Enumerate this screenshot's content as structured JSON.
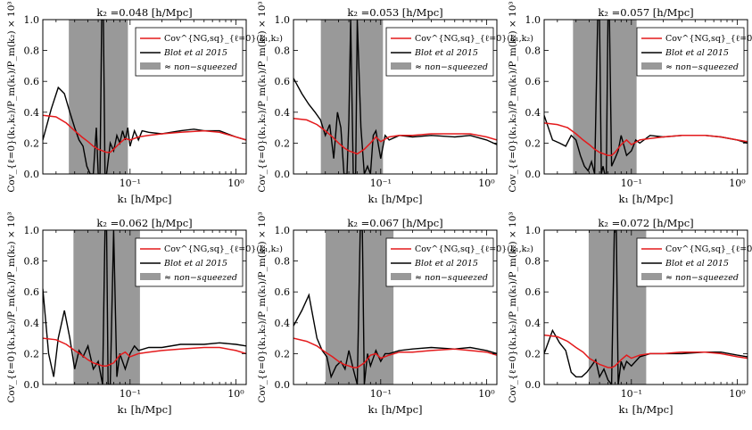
{
  "figure": {
    "ylabel": "Cov_{ℓ=0}(k₁,k₂)/P_m(k₁)/P_m(k₂) × 10³",
    "xlabel": "k₁  [h/Mpc]",
    "xtick_major": "10⁻¹",
    "xtick_major2": "10⁰",
    "yticks": [
      "0.0",
      "0.2",
      "0.4",
      "0.6",
      "0.8",
      "1.0"
    ],
    "legend": {
      "model": "Cov^{NG,sq}_{ℓ=0}(k₁,k₂)",
      "data": "Blot et al 2015",
      "band": "≈ non−squeezed"
    },
    "colors": {
      "model": "#e41a1c",
      "data": "#000000",
      "band": "#999999"
    }
  },
  "chart_data": [
    {
      "type": "line",
      "title": "k₂ =0.048 [h/Mpc]",
      "k2": 0.048,
      "xscale": "log",
      "xlim": [
        0.015,
        1.25
      ],
      "ylim": [
        0,
        1.0
      ],
      "band": [
        0.0264,
        0.0955
      ],
      "series": [
        {
          "name": "Cov^{NG,sq}_{ℓ=0}(k₁,k₂)",
          "x": [
            0.015,
            0.02,
            0.025,
            0.03,
            0.035,
            0.04,
            0.045,
            0.05,
            0.055,
            0.06,
            0.065,
            0.07,
            0.08,
            0.09,
            0.1,
            0.12,
            0.15,
            0.2,
            0.3,
            0.5,
            0.7,
            1.0,
            1.25
          ],
          "y": [
            0.38,
            0.37,
            0.33,
            0.28,
            0.24,
            0.21,
            0.18,
            0.16,
            0.15,
            0.14,
            0.14,
            0.16,
            0.2,
            0.23,
            0.22,
            0.24,
            0.25,
            0.26,
            0.27,
            0.28,
            0.27,
            0.24,
            0.22
          ]
        },
        {
          "name": "Blot et al 2015",
          "x": [
            0.015,
            0.018,
            0.021,
            0.024,
            0.027,
            0.03,
            0.033,
            0.036,
            0.039,
            0.042,
            0.045,
            0.048,
            0.05,
            0.052,
            0.054,
            0.056,
            0.058,
            0.06,
            0.065,
            0.07,
            0.075,
            0.08,
            0.085,
            0.09,
            0.095,
            0.1,
            0.11,
            0.12,
            0.13,
            0.15,
            0.2,
            0.3,
            0.4,
            0.5,
            0.7,
            1.0,
            1.25
          ],
          "y": [
            0.22,
            0.42,
            0.56,
            0.52,
            0.4,
            0.3,
            0.22,
            0.18,
            0.05,
            0.0,
            0.0,
            0.3,
            0.0,
            0.0,
            1.0,
            1.0,
            0.0,
            0.0,
            0.2,
            0.15,
            0.25,
            0.2,
            0.28,
            0.22,
            0.3,
            0.18,
            0.28,
            0.22,
            0.28,
            0.27,
            0.26,
            0.28,
            0.29,
            0.28,
            0.28,
            0.24,
            0.22
          ]
        }
      ]
    },
    {
      "type": "line",
      "title": "k₂ =0.053 [h/Mpc]",
      "k2": 0.053,
      "xscale": "log",
      "xlim": [
        0.015,
        1.25
      ],
      "ylim": [
        0,
        1.0
      ],
      "band": [
        0.0272,
        0.105
      ],
      "series": [
        {
          "name": "Cov^{NG,sq}_{ℓ=0}(k₁,k₂)",
          "x": [
            0.015,
            0.02,
            0.025,
            0.03,
            0.035,
            0.04,
            0.045,
            0.05,
            0.055,
            0.06,
            0.07,
            0.08,
            0.09,
            0.1,
            0.12,
            0.15,
            0.2,
            0.3,
            0.5,
            0.7,
            1.0,
            1.25
          ],
          "y": [
            0.36,
            0.35,
            0.32,
            0.28,
            0.24,
            0.2,
            0.17,
            0.15,
            0.14,
            0.13,
            0.16,
            0.2,
            0.24,
            0.21,
            0.24,
            0.25,
            0.25,
            0.26,
            0.26,
            0.26,
            0.24,
            0.22
          ]
        },
        {
          "name": "Blot et al 2015",
          "x": [
            0.015,
            0.018,
            0.021,
            0.024,
            0.027,
            0.03,
            0.033,
            0.036,
            0.039,
            0.042,
            0.045,
            0.048,
            0.05,
            0.052,
            0.055,
            0.058,
            0.06,
            0.065,
            0.07,
            0.075,
            0.08,
            0.085,
            0.09,
            0.1,
            0.11,
            0.12,
            0.15,
            0.2,
            0.3,
            0.5,
            0.7,
            1.0,
            1.25
          ],
          "y": [
            0.62,
            0.52,
            0.45,
            0.4,
            0.35,
            0.25,
            0.32,
            0.1,
            0.4,
            0.3,
            0.0,
            0.0,
            0.35,
            1.0,
            0.0,
            0.0,
            1.0,
            0.3,
            0.0,
            0.05,
            0.0,
            0.25,
            0.28,
            0.1,
            0.25,
            0.22,
            0.25,
            0.24,
            0.25,
            0.24,
            0.25,
            0.22,
            0.19
          ]
        }
      ]
    },
    {
      "type": "line",
      "title": "k₂ =0.057 [h/Mpc]",
      "k2": 0.057,
      "xscale": "log",
      "xlim": [
        0.015,
        1.25
      ],
      "ylim": [
        0,
        1.0
      ],
      "band": [
        0.0281,
        0.112
      ],
      "series": [
        {
          "name": "Cov^{NG,sq}_{ℓ=0}(k₁,k₂)",
          "x": [
            0.015,
            0.02,
            0.025,
            0.03,
            0.035,
            0.04,
            0.045,
            0.05,
            0.055,
            0.06,
            0.065,
            0.07,
            0.08,
            0.09,
            0.1,
            0.12,
            0.15,
            0.2,
            0.3,
            0.5,
            0.7,
            1.0,
            1.25
          ],
          "y": [
            0.33,
            0.32,
            0.3,
            0.26,
            0.22,
            0.19,
            0.16,
            0.14,
            0.13,
            0.12,
            0.12,
            0.14,
            0.19,
            0.22,
            0.19,
            0.22,
            0.23,
            0.24,
            0.25,
            0.25,
            0.24,
            0.22,
            0.21
          ]
        },
        {
          "name": "Blot et al 2015",
          "x": [
            0.015,
            0.018,
            0.021,
            0.024,
            0.027,
            0.03,
            0.033,
            0.036,
            0.039,
            0.042,
            0.045,
            0.048,
            0.05,
            0.052,
            0.054,
            0.056,
            0.058,
            0.06,
            0.062,
            0.065,
            0.07,
            0.075,
            0.08,
            0.09,
            0.1,
            0.11,
            0.12,
            0.15,
            0.2,
            0.3,
            0.5,
            0.7,
            1.0,
            1.25
          ],
          "y": [
            0.38,
            0.22,
            0.2,
            0.18,
            0.25,
            0.22,
            0.12,
            0.05,
            0.02,
            0.08,
            0.0,
            1.0,
            1.0,
            0.0,
            0.05,
            0.0,
            0.0,
            1.0,
            1.0,
            0.05,
            0.1,
            0.15,
            0.25,
            0.12,
            0.15,
            0.22,
            0.2,
            0.25,
            0.24,
            0.25,
            0.25,
            0.24,
            0.22,
            0.2
          ]
        }
      ]
    },
    {
      "type": "line",
      "title": "k₂ =0.062 [h/Mpc]",
      "k2": 0.062,
      "xscale": "log",
      "xlim": [
        0.015,
        1.25
      ],
      "ylim": [
        0,
        1.0
      ],
      "band": [
        0.0292,
        0.124
      ],
      "series": [
        {
          "name": "Cov^{NG,sq}_{ℓ=0}(k₁,k₂)",
          "x": [
            0.015,
            0.02,
            0.025,
            0.03,
            0.035,
            0.04,
            0.045,
            0.05,
            0.055,
            0.06,
            0.07,
            0.08,
            0.09,
            0.1,
            0.12,
            0.15,
            0.2,
            0.3,
            0.5,
            0.7,
            1.0,
            1.25
          ],
          "y": [
            0.3,
            0.29,
            0.26,
            0.22,
            0.19,
            0.16,
            0.14,
            0.13,
            0.12,
            0.12,
            0.14,
            0.19,
            0.21,
            0.18,
            0.2,
            0.21,
            0.22,
            0.23,
            0.24,
            0.24,
            0.22,
            0.2
          ]
        },
        {
          "name": "Blot et al 2015",
          "x": [
            0.015,
            0.017,
            0.019,
            0.021,
            0.024,
            0.027,
            0.03,
            0.033,
            0.036,
            0.04,
            0.045,
            0.05,
            0.055,
            0.058,
            0.06,
            0.062,
            0.065,
            0.07,
            0.075,
            0.08,
            0.09,
            0.1,
            0.11,
            0.12,
            0.15,
            0.2,
            0.3,
            0.5,
            0.7,
            1.0,
            1.25
          ],
          "y": [
            0.62,
            0.2,
            0.05,
            0.3,
            0.48,
            0.3,
            0.1,
            0.22,
            0.18,
            0.25,
            0.1,
            0.15,
            0.0,
            1.0,
            1.0,
            0.0,
            0.0,
            1.0,
            0.05,
            0.2,
            0.1,
            0.2,
            0.25,
            0.22,
            0.24,
            0.24,
            0.26,
            0.26,
            0.27,
            0.26,
            0.25
          ]
        }
      ]
    },
    {
      "type": "line",
      "title": "k₂ =0.067 [h/Mpc]",
      "k2": 0.067,
      "xscale": "log",
      "xlim": [
        0.015,
        1.25
      ],
      "ylim": [
        0,
        1.0
      ],
      "band": [
        0.0301,
        0.132
      ],
      "series": [
        {
          "name": "Cov^{NG,sq}_{ℓ=0}(k₁,k₂)",
          "x": [
            0.015,
            0.02,
            0.025,
            0.03,
            0.035,
            0.04,
            0.045,
            0.05,
            0.055,
            0.06,
            0.07,
            0.08,
            0.09,
            0.1,
            0.12,
            0.15,
            0.2,
            0.3,
            0.5,
            0.7,
            1.0,
            1.25
          ],
          "y": [
            0.3,
            0.28,
            0.25,
            0.21,
            0.18,
            0.15,
            0.13,
            0.12,
            0.11,
            0.11,
            0.14,
            0.19,
            0.2,
            0.17,
            0.19,
            0.21,
            0.21,
            0.22,
            0.23,
            0.22,
            0.21,
            0.19
          ]
        },
        {
          "name": "Blot et al 2015",
          "x": [
            0.015,
            0.018,
            0.021,
            0.025,
            0.028,
            0.031,
            0.034,
            0.038,
            0.042,
            0.046,
            0.05,
            0.055,
            0.06,
            0.064,
            0.067,
            0.07,
            0.075,
            0.08,
            0.09,
            0.1,
            0.11,
            0.12,
            0.15,
            0.2,
            0.3,
            0.5,
            0.7,
            1.0,
            1.25
          ],
          "y": [
            0.38,
            0.48,
            0.58,
            0.3,
            0.22,
            0.18,
            0.05,
            0.12,
            0.15,
            0.1,
            0.22,
            0.1,
            0.0,
            1.0,
            1.0,
            0.0,
            0.2,
            0.12,
            0.22,
            0.15,
            0.2,
            0.2,
            0.22,
            0.23,
            0.24,
            0.23,
            0.24,
            0.22,
            0.2
          ]
        }
      ]
    },
    {
      "type": "line",
      "title": "k₂ =0.072 [h/Mpc]",
      "k2": 0.072,
      "xscale": "log",
      "xlim": [
        0.015,
        1.25
      ],
      "ylim": [
        0,
        1.0
      ],
      "band": [
        0.0395,
        0.138
      ],
      "series": [
        {
          "name": "Cov^{NG,sq}_{ℓ=0}(k₁,k₂)",
          "x": [
            0.015,
            0.02,
            0.025,
            0.03,
            0.035,
            0.04,
            0.045,
            0.05,
            0.055,
            0.06,
            0.065,
            0.07,
            0.08,
            0.09,
            0.1,
            0.12,
            0.15,
            0.2,
            0.3,
            0.5,
            0.7,
            1.0,
            1.25
          ],
          "y": [
            0.32,
            0.31,
            0.28,
            0.24,
            0.21,
            0.17,
            0.15,
            0.13,
            0.12,
            0.11,
            0.11,
            0.12,
            0.16,
            0.19,
            0.17,
            0.19,
            0.2,
            0.2,
            0.21,
            0.21,
            0.2,
            0.18,
            0.17
          ]
        },
        {
          "name": "Blot et al 2015",
          "x": [
            0.015,
            0.018,
            0.021,
            0.024,
            0.027,
            0.03,
            0.034,
            0.038,
            0.042,
            0.046,
            0.05,
            0.055,
            0.06,
            0.065,
            0.069,
            0.072,
            0.075,
            0.08,
            0.085,
            0.09,
            0.1,
            0.12,
            0.15,
            0.2,
            0.3,
            0.5,
            0.7,
            1.0,
            1.25
          ],
          "y": [
            0.2,
            0.35,
            0.27,
            0.22,
            0.08,
            0.05,
            0.05,
            0.08,
            0.12,
            0.16,
            0.05,
            0.1,
            0.03,
            0.0,
            1.0,
            1.0,
            0.0,
            0.15,
            0.1,
            0.15,
            0.12,
            0.18,
            0.2,
            0.2,
            0.2,
            0.21,
            0.21,
            0.19,
            0.18
          ]
        }
      ]
    }
  ]
}
